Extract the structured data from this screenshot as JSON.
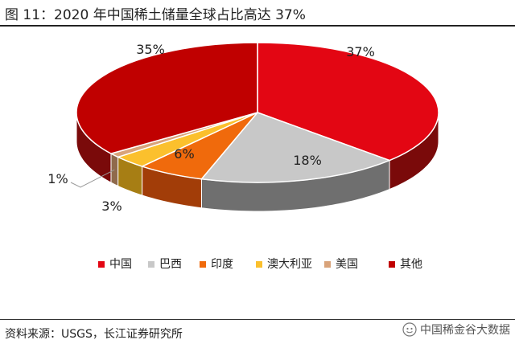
{
  "title": "图 11：2020 年中国稀土储量全球占比高达 37%",
  "source": "资料来源：USGS，长江证券研究所",
  "watermark": "中国稀金谷大数据",
  "chart_data": {
    "type": "pie",
    "categories": [
      "中国",
      "巴西",
      "印度",
      "澳大利亚",
      "美国",
      "其他"
    ],
    "values": [
      37,
      18,
      6,
      3,
      1,
      35
    ],
    "labels": [
      "37%",
      "18%",
      "6%",
      "3%",
      "1%",
      "35%"
    ],
    "colors": [
      "#e30613",
      "#c8c8c8",
      "#f06a0c",
      "#fbc02d",
      "#d9a37a",
      "#c00000"
    ],
    "side_colors": [
      "#7a0a0a",
      "#6f6f6f",
      "#a23d08",
      "#a77e14",
      "#8f6a4c",
      "#7a0a0a"
    ],
    "legend_position": "bottom",
    "three_d": true
  }
}
